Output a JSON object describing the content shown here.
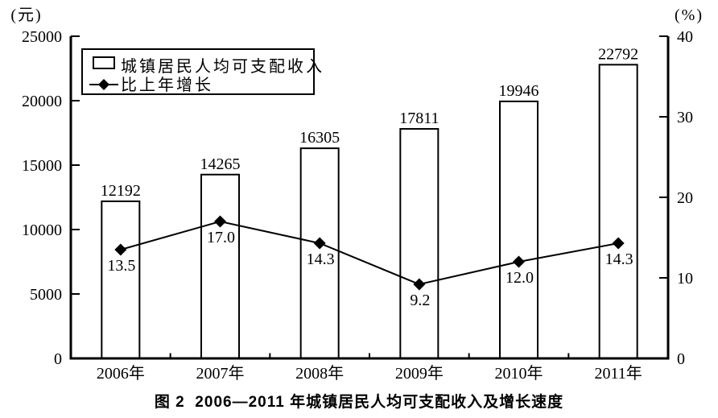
{
  "figure": {
    "caption": "图 2  2006—2011 年城镇居民人均可支配收入及增长速度"
  },
  "chart_data": {
    "type": "bar",
    "subtype": "bar+line combo, dual axis",
    "title": "图 2 2006—2011 年城镇居民人均可支配收入及增长速度",
    "categories": [
      "2006年",
      "2007年",
      "2008年",
      "2009年",
      "2010年",
      "2011年"
    ],
    "series": [
      {
        "name": "城镇居民人均可支配收入",
        "type": "bar",
        "axis": "left",
        "unit": "元",
        "values": [
          12192,
          14265,
          16305,
          17811,
          19946,
          22792
        ]
      },
      {
        "name": "比上年增长",
        "type": "line",
        "axis": "right",
        "unit": "%",
        "marker": "diamond",
        "values": [
          13.5,
          17.0,
          14.3,
          9.2,
          12.0,
          14.3
        ]
      }
    ],
    "left_axis": {
      "unit_label": "(元)",
      "min": 0,
      "max": 25000,
      "step": 5000,
      "tick_labels": [
        "25000",
        "20000",
        "15000",
        "10000",
        "5000",
        "0"
      ]
    },
    "right_axis": {
      "unit_label": "(%)",
      "min": 0,
      "max": 40,
      "step": 10,
      "tick_labels": [
        "40",
        "30",
        "20",
        "10",
        "0"
      ]
    },
    "legend": {
      "position": "top-left",
      "entries": [
        "城镇居民人均可支配收入",
        "比上年增长"
      ]
    },
    "grid": false,
    "colors": {
      "ink": "#000000",
      "bar_fill": "#ffffff",
      "background": "#ffffff"
    }
  }
}
